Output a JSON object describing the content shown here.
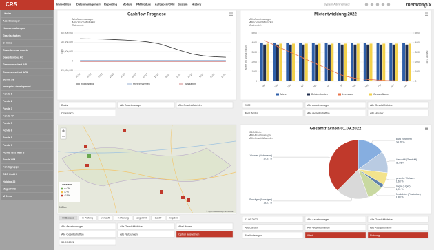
{
  "header": {
    "logo": "CRS",
    "menu": [
      "Immobilien",
      "Datenmanagement",
      "Reporting",
      "Module",
      "PM Module",
      "Aufgaben/CRM",
      "System",
      "History"
    ],
    "user": "System Administrator",
    "brand": "metamagix"
  },
  "sidebar": [
    "Länder",
    "Assetmanager",
    "Hausverwaltungen",
    "Gesellschaften",
    "C-Immo",
    "Gewerbeverw. Assets",
    "Gewerbenbau AG",
    "Genossenschaft A/R",
    "Genossenschaft A/R2",
    "Sentra SB",
    "enterprise development",
    "Fonds 1",
    "Fonds 2",
    "Fonds 3",
    "Fonds 47",
    "Fonds 5",
    "Fonds 6",
    "Fonds 8",
    "Fonds 9",
    "Fonds Test INBT 8",
    "Fonds WM",
    "Fondsgruppe",
    "GEG GmbH",
    "Holding 22",
    "Magic KAG",
    "M Demo"
  ],
  "cashflow": {
    "title": "Cashflow Prognose",
    "subtitle": [
      "Alle Assetmanager",
      "Alle Geschäftsfelder",
      "Österreich"
    ],
    "y_label": "Euro",
    "ylim": [
      -20000000,
      60000000
    ],
    "yticks": [
      {
        "value": -20000000,
        "label": "-20,000,000"
      },
      {
        "value": 0,
        "label": "0"
      },
      {
        "value": 20000000,
        "label": "20,000,000"
      },
      {
        "value": 40000000,
        "label": "40,000,000"
      },
      {
        "value": 60000000,
        "label": "60,000,000"
      }
    ],
    "categories": [
      "01/22",
      "04/22",
      "07/22",
      "10/22",
      "01/23",
      "04/23",
      "07/23",
      "10/23",
      "01/24",
      "04/24",
      "07/24",
      "10/24",
      "01/25",
      "04/25"
    ],
    "series": [
      {
        "name": "Kontostand",
        "color": "#333333",
        "values": [
          48000000,
          47500000,
          47000000,
          46000000,
          45000000,
          43500000,
          41000000,
          37000000,
          30000000,
          22000000,
          15000000,
          11000000,
          9000000,
          8000000
        ]
      },
      {
        "name": "Mieteinnahmen",
        "color": "#7f9fc9",
        "values": [
          1000000,
          1000000,
          1000000,
          1000000,
          1000000,
          1000000,
          1000000,
          1000000,
          1000000,
          1000000,
          1000000,
          1000000,
          1000000,
          1000000
        ]
      },
      {
        "name": "Ausgaben",
        "color": "#c96a6a",
        "values": [
          -1000000,
          -1000000,
          -1000000,
          -1000000,
          -1000000,
          -1000000,
          -1000000,
          -1000000,
          -1000000,
          -1000000,
          -1000000,
          -1000000,
          -1000000,
          -1000000
        ]
      }
    ],
    "filters": [
      "Basis",
      "Alle Assetmanager",
      "Alle Geschäftsfelder",
      "Österreich"
    ]
  },
  "miete": {
    "title": "Mietentwicklung 2022",
    "subtitle": [
      "Alle Assetmanager",
      "Alle Geschäftsfelder",
      "Österreich"
    ],
    "y_label": "Miete pro Monat in Euro",
    "y2_label": "Fläche in m²",
    "ylim": [
      0,
      5000
    ],
    "yticks": [
      0,
      1000,
      2000,
      3000,
      4000,
      5000
    ],
    "y2lim": [
      0,
      5000
    ],
    "y2ticks": [
      0,
      1000,
      2000,
      3000,
      4000,
      5000
    ],
    "categories": [
      "Jan",
      "Feb",
      "Mär",
      "Apr",
      "Mai",
      "Jun",
      "Jul",
      "Aug",
      "Sep",
      "Okt",
      "Nov",
      "Dez"
    ],
    "series": [
      {
        "name": "Miete",
        "color": "#2f5fa8",
        "values": [
          4000,
          4000,
          4000,
          4000,
          4000,
          4000,
          4000,
          4000,
          4000,
          4000,
          4000,
          4000
        ]
      },
      {
        "name": "Betriebskosten",
        "color": "#1f2d4d",
        "values": [
          3800,
          3800,
          3800,
          3800,
          3800,
          3800,
          3800,
          3800,
          3800,
          3800,
          3800,
          3800
        ]
      },
      {
        "name": "Leerstand",
        "color": "#e8734a",
        "axis": "y2",
        "values": [
          4200,
          3600,
          3000,
          2400,
          1800,
          1200,
          600,
          300,
          200,
          100,
          50,
          20
        ]
      },
      {
        "name": "Gesamtfläche",
        "color": "#f2d04b",
        "values": [
          3900,
          3900,
          3900,
          3900,
          3900,
          3900,
          3900,
          3900,
          3900,
          3900,
          3900,
          3900
        ]
      }
    ],
    "filters": [
      "2022",
      "Alle Assetmanager",
      "Alle Geschäftsfelder",
      "Alle Länder",
      "Alle Gesellschaften",
      "Alle Häuser"
    ]
  },
  "map": {
    "legend_title": "Leerstand",
    "legend": [
      "<=7%",
      ">7%",
      ">15%"
    ],
    "attribution": "© OpenStreetMap contributors",
    "scale": "100 km",
    "status_buttons": [
      "im Bestand",
      "in Prüfung",
      "verkauft",
      "in Planung",
      "abgelehnt",
      "inaktiv",
      "Angebot"
    ],
    "filters": [
      "Alle Assetmanager",
      "Alle Geschäftsfelder",
      "Alle Länder",
      "Alle Gesellschaften",
      "Alle Nutzungen",
      {
        "label": "Option auswählen",
        "color": "#c0392b"
      },
      "30.09.2022"
    ]
  },
  "gesamt": {
    "title": "Gesamtflächen 01.09.2022",
    "subtitle": [
      "310 Mieter",
      "Alle Assetmanager",
      "Alle Geschäftsfelder"
    ],
    "categories": [
      "Büro (Wohnen)",
      "Geschäft (Geschäft)",
      "gewerbl. Wohnen",
      "Lager (Lager)",
      "Produktion (Produktion)",
      "Sonstiges (Sonstiges)",
      "Wohnen (Wohnraum)"
    ],
    "values": [
      14.89,
      11.96,
      6.68,
      2.01,
      8.88,
      18.01,
      37.57
    ],
    "value_labels": [
      "14,89 %",
      "11,96 %",
      "6,68 %",
      "2,01 %",
      "8,88 %",
      "18,01 %",
      "37,57 %"
    ],
    "colors": [
      "#86aee0",
      "#b9cbe2",
      "#f3e38c",
      "#5f82ab",
      "#c9d9a1",
      "#d9d9d9",
      "#c0392b"
    ],
    "filters": [
      "01.09.2022",
      "Alle Assetmanager",
      "Alle Geschäftsfelder",
      "Alle Länder",
      "Alle Gesellschaften",
      "Alle Ausgabewerte",
      "Alle Nutzungen",
      {
        "label": "Wert",
        "color": "#c0392b"
      },
      {
        "label": "Nutzung",
        "color": "#c0392b"
      }
    ]
  }
}
